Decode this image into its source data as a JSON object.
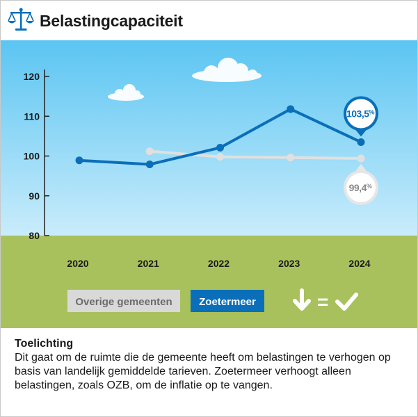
{
  "header": {
    "title": "Belastingcapaciteit",
    "icon": "scales-icon"
  },
  "chart_data": {
    "type": "line",
    "categories": [
      "2020",
      "2021",
      "2022",
      "2023",
      "2024"
    ],
    "ylim": [
      80,
      120
    ],
    "yticks": [
      "80",
      "90",
      "100",
      "110",
      "120"
    ],
    "grid": false,
    "series": [
      {
        "name": "Overige gemeenten",
        "color": "#e0e0e0",
        "values": [
          null,
          101.2,
          99.8,
          99.6,
          99.4
        ]
      },
      {
        "name": "Zoetermeer",
        "color": "#0a6fb8",
        "values": [
          98.9,
          97.9,
          102.1,
          111.8,
          103.5
        ]
      }
    ],
    "annotations": [
      {
        "series": "Zoetermeer",
        "category": "2024",
        "num": "103,5",
        "unit": "%"
      },
      {
        "series": "Overige gemeenten",
        "category": "2024",
        "num": "99,4",
        "unit": "%"
      }
    ],
    "legend": {
      "placement": "bottom-left",
      "items": [
        "Overige gemeenten",
        "Zoetermeer"
      ]
    },
    "verdict": {
      "icons": [
        "arrow-down-icon",
        "equals-icon",
        "check-icon"
      ],
      "text": "="
    },
    "colors": {
      "sky_top": "#5bc5f2",
      "sky_bottom": "#c9ecfb",
      "grass": "#a9c15c",
      "zoetermeer": "#0a6fb8",
      "overige": "#e0e0e0"
    }
  },
  "footer": {
    "title": "Toelichting",
    "text": "Dit gaat om de ruimte die de gemeente heeft om belastingen te verhogen op basis van landelijk gemiddelde tarieven. Zoetermeer verhoogt alleen belastingen, zoals OZB, om de inflatie op te vangen."
  }
}
